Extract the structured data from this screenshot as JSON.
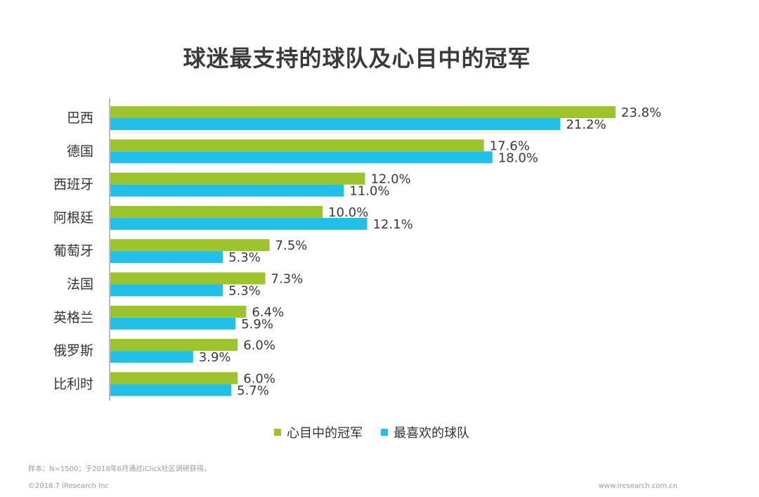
{
  "colors": {
    "series1": "#9dc52b",
    "series2": "#22c0e8",
    "axis": "#7a7a7a"
  },
  "chart_data": {
    "type": "bar",
    "orientation": "horizontal",
    "title": "球迷最支持的球队及心目中的冠军",
    "categories": [
      "巴西",
      "德国",
      "西班牙",
      "阿根廷",
      "葡萄牙",
      "法国",
      "英格兰",
      "俄罗斯",
      "比利时"
    ],
    "series": [
      {
        "name": "心目中的冠军",
        "values": [
          23.8,
          17.6,
          12.0,
          10.0,
          7.5,
          7.3,
          6.4,
          6.0,
          6.0
        ]
      },
      {
        "name": "最喜欢的球队",
        "values": [
          21.2,
          18.0,
          11.0,
          12.1,
          5.3,
          5.3,
          5.9,
          3.9,
          5.7
        ]
      }
    ],
    "value_suffix": "%",
    "xlim": [
      0,
      24.3
    ],
    "legend": "bottom-center",
    "grid": false
  },
  "footer": {
    "note": "样本：N=1500；于2018年6月通过iClick社区调研获得。",
    "copyright": "©2018.7 iResearch Inc",
    "url": "www.iresearch.com.cn"
  }
}
